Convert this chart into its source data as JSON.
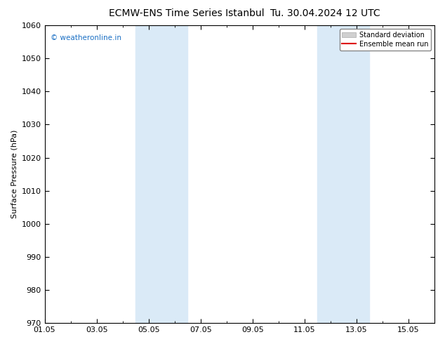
{
  "title": "ECMW-ENS Time Series Istanbul",
  "title_right": "Tu. 30.04.2024 12 UTC",
  "ylabel": "Surface Pressure (hPa)",
  "ylim": [
    970,
    1060
  ],
  "yticks": [
    970,
    980,
    990,
    1000,
    1010,
    1020,
    1030,
    1040,
    1050,
    1060
  ],
  "xlabel_dates": [
    "01.05",
    "03.05",
    "05.05",
    "07.05",
    "09.05",
    "11.05",
    "13.05",
    "15.05"
  ],
  "xtick_positions": [
    0,
    2,
    4,
    6,
    8,
    10,
    12,
    14
  ],
  "xlim": [
    0,
    15
  ],
  "shade_bands": [
    {
      "x_start": 3.5,
      "x_end": 5.5
    },
    {
      "x_start": 10.5,
      "x_end": 12.5
    }
  ],
  "shade_color": "#daeaf7",
  "watermark": "© weatheronline.in",
  "watermark_color": "#1a6fc4",
  "legend_items": [
    {
      "label": "Standard deviation",
      "type": "patch",
      "color": "#d0d0d0"
    },
    {
      "label": "Ensemble mean run",
      "type": "line",
      "color": "#dd0000",
      "lw": 1.5
    }
  ],
  "background_color": "#ffffff",
  "plot_bg_color": "#ffffff",
  "title_fontsize": 10,
  "label_fontsize": 8,
  "tick_fontsize": 8
}
